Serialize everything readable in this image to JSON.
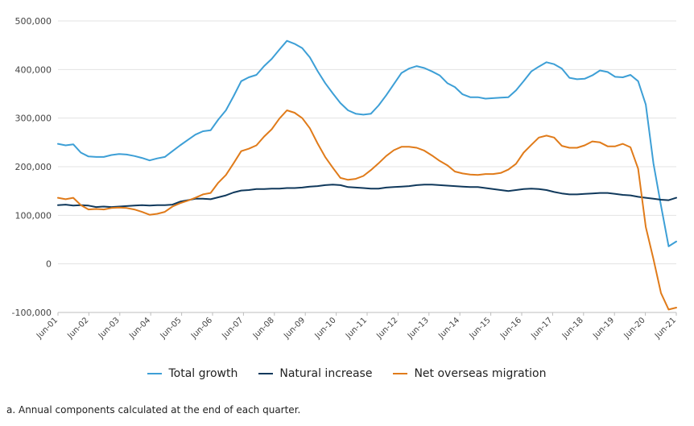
{
  "chart_data": {
    "type": "line",
    "title": "",
    "xlabel": "",
    "ylabel": "",
    "ylim": [
      -100000,
      500000
    ],
    "y_ticks": [
      -100000,
      0,
      100000,
      200000,
      300000,
      400000,
      500000
    ],
    "y_tick_labels": [
      "-100,000",
      "0",
      "100,000",
      "200,000",
      "300,000",
      "400,000",
      "500,000"
    ],
    "x_labels": [
      "Jun-01",
      "Jun-02",
      "Jun-03",
      "Jun-04",
      "Jun-05",
      "Jun-06",
      "Jun-07",
      "Jun-08",
      "Jun-09",
      "Jun-10",
      "Jun-11",
      "Jun-12",
      "Jun-13",
      "Jun-14",
      "Jun-15",
      "Jun-16",
      "Jun-17",
      "Jun-18",
      "Jun-19",
      "Jun-20",
      "Jun-21"
    ],
    "grid": true,
    "legend_position": "bottom",
    "series": [
      {
        "name": "Total growth",
        "color": "#3d9fd6",
        "values": [
          247000,
          244000,
          246000,
          229000,
          221000,
          220000,
          220000,
          224000,
          226000,
          225000,
          222000,
          218000,
          213000,
          217000,
          220000,
          232000,
          244000,
          255000,
          266000,
          273000,
          275000,
          297000,
          316000,
          345000,
          376000,
          384000,
          389000,
          407000,
          422000,
          441000,
          459000,
          453000,
          444000,
          425000,
          397000,
          372000,
          351000,
          331000,
          316000,
          309000,
          307000,
          309000,
          326000,
          347000,
          370000,
          393000,
          402000,
          407000,
          403000,
          396000,
          388000,
          372000,
          364000,
          349000,
          343000,
          343000,
          340000,
          341000,
          342000,
          343000,
          357000,
          376000,
          396000,
          406000,
          415000,
          411000,
          402000,
          383000,
          380000,
          381000,
          388000,
          398000,
          395000,
          385000,
          384000,
          389000,
          376000,
          328000,
          207000,
          120000,
          36000,
          46000
        ]
      },
      {
        "name": "Natural increase",
        "color": "#10395c",
        "values": [
          121000,
          122000,
          120000,
          121000,
          120000,
          117000,
          118000,
          117000,
          118000,
          119000,
          120000,
          121000,
          120000,
          121000,
          121000,
          122000,
          128000,
          131000,
          134000,
          134000,
          133000,
          137000,
          141000,
          147000,
          151000,
          152000,
          154000,
          154000,
          155000,
          155000,
          156000,
          156000,
          157000,
          159000,
          160000,
          162000,
          163000,
          162000,
          158000,
          157000,
          156000,
          155000,
          155000,
          157000,
          158000,
          159000,
          160000,
          162000,
          163000,
          163000,
          162000,
          161000,
          160000,
          159000,
          158000,
          158000,
          156000,
          154000,
          152000,
          150000,
          152000,
          154000,
          155000,
          154000,
          152000,
          148000,
          145000,
          143000,
          143000,
          144000,
          145000,
          146000,
          146000,
          144000,
          142000,
          141000,
          138000,
          136000,
          134000,
          132000,
          131000,
          136000
        ]
      },
      {
        "name": "Net overseas migration",
        "color": "#e07b1a",
        "values": [
          136000,
          133000,
          136000,
          121000,
          112000,
          113000,
          112000,
          115000,
          116000,
          115000,
          112000,
          107000,
          101000,
          103000,
          107000,
          118000,
          125000,
          130000,
          136000,
          143000,
          146000,
          167000,
          183000,
          207000,
          232000,
          237000,
          244000,
          262000,
          277000,
          299000,
          316000,
          311000,
          300000,
          279000,
          248000,
          220000,
          198000,
          177000,
          173000,
          175000,
          181000,
          193000,
          207000,
          222000,
          234000,
          241000,
          241000,
          239000,
          233000,
          223000,
          212000,
          203000,
          190000,
          186000,
          184000,
          183000,
          185000,
          185000,
          187000,
          194000,
          206000,
          229000,
          245000,
          260000,
          264000,
          260000,
          243000,
          239000,
          239000,
          244000,
          252000,
          250000,
          242000,
          242000,
          247000,
          240000,
          196000,
          76000,
          10000,
          -60000,
          -94000,
          -90000
        ]
      }
    ]
  },
  "legend": {
    "items": [
      {
        "label": "Total growth",
        "color": "#3d9fd6"
      },
      {
        "label": "Natural increase",
        "color": "#10395c"
      },
      {
        "label": "Net overseas migration",
        "color": "#e07b1a"
      }
    ]
  },
  "footnote": "a. Annual components calculated at the end of each quarter."
}
